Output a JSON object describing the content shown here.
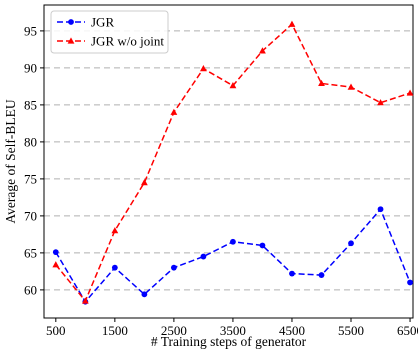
{
  "chart_data": {
    "type": "line",
    "title": "",
    "xlabel": "# Training steps of generator",
    "ylabel": "Average of Self-BLEU",
    "xlim": [
      300,
      6550
    ],
    "ylim": [
      56.2,
      98.5
    ],
    "xticks": [
      500,
      1500,
      2500,
      3500,
      4500,
      5500,
      6500
    ],
    "xtick_labels": [
      "500",
      "1500",
      "2500",
      "3500",
      "4500",
      "5500",
      "6500"
    ],
    "yticks": [
      60,
      65,
      70,
      75,
      80,
      85,
      90,
      95
    ],
    "ytick_labels": [
      "60",
      "65",
      "70",
      "75",
      "80",
      "85",
      "90",
      "95"
    ],
    "grid": "horizontal-dashed",
    "legend_position": "top-left",
    "x": [
      500,
      1000,
      1500,
      2000,
      2500,
      3000,
      3500,
      4000,
      4500,
      5000,
      5500,
      6000,
      6500
    ],
    "series": [
      {
        "name": "JGR",
        "color": "#0000ff",
        "marker": "circle",
        "values": [
          65.1,
          58.4,
          63.0,
          59.4,
          63.0,
          64.5,
          66.5,
          66.0,
          62.2,
          62.0,
          66.3,
          70.9,
          61.0
        ]
      },
      {
        "name": "JGR w/o joint",
        "color": "#ff0000",
        "marker": "triangle",
        "values": [
          63.4,
          58.5,
          68.0,
          74.5,
          84.0,
          89.9,
          87.6,
          92.3,
          95.9,
          87.9,
          87.4,
          85.3,
          86.6
        ]
      }
    ]
  }
}
